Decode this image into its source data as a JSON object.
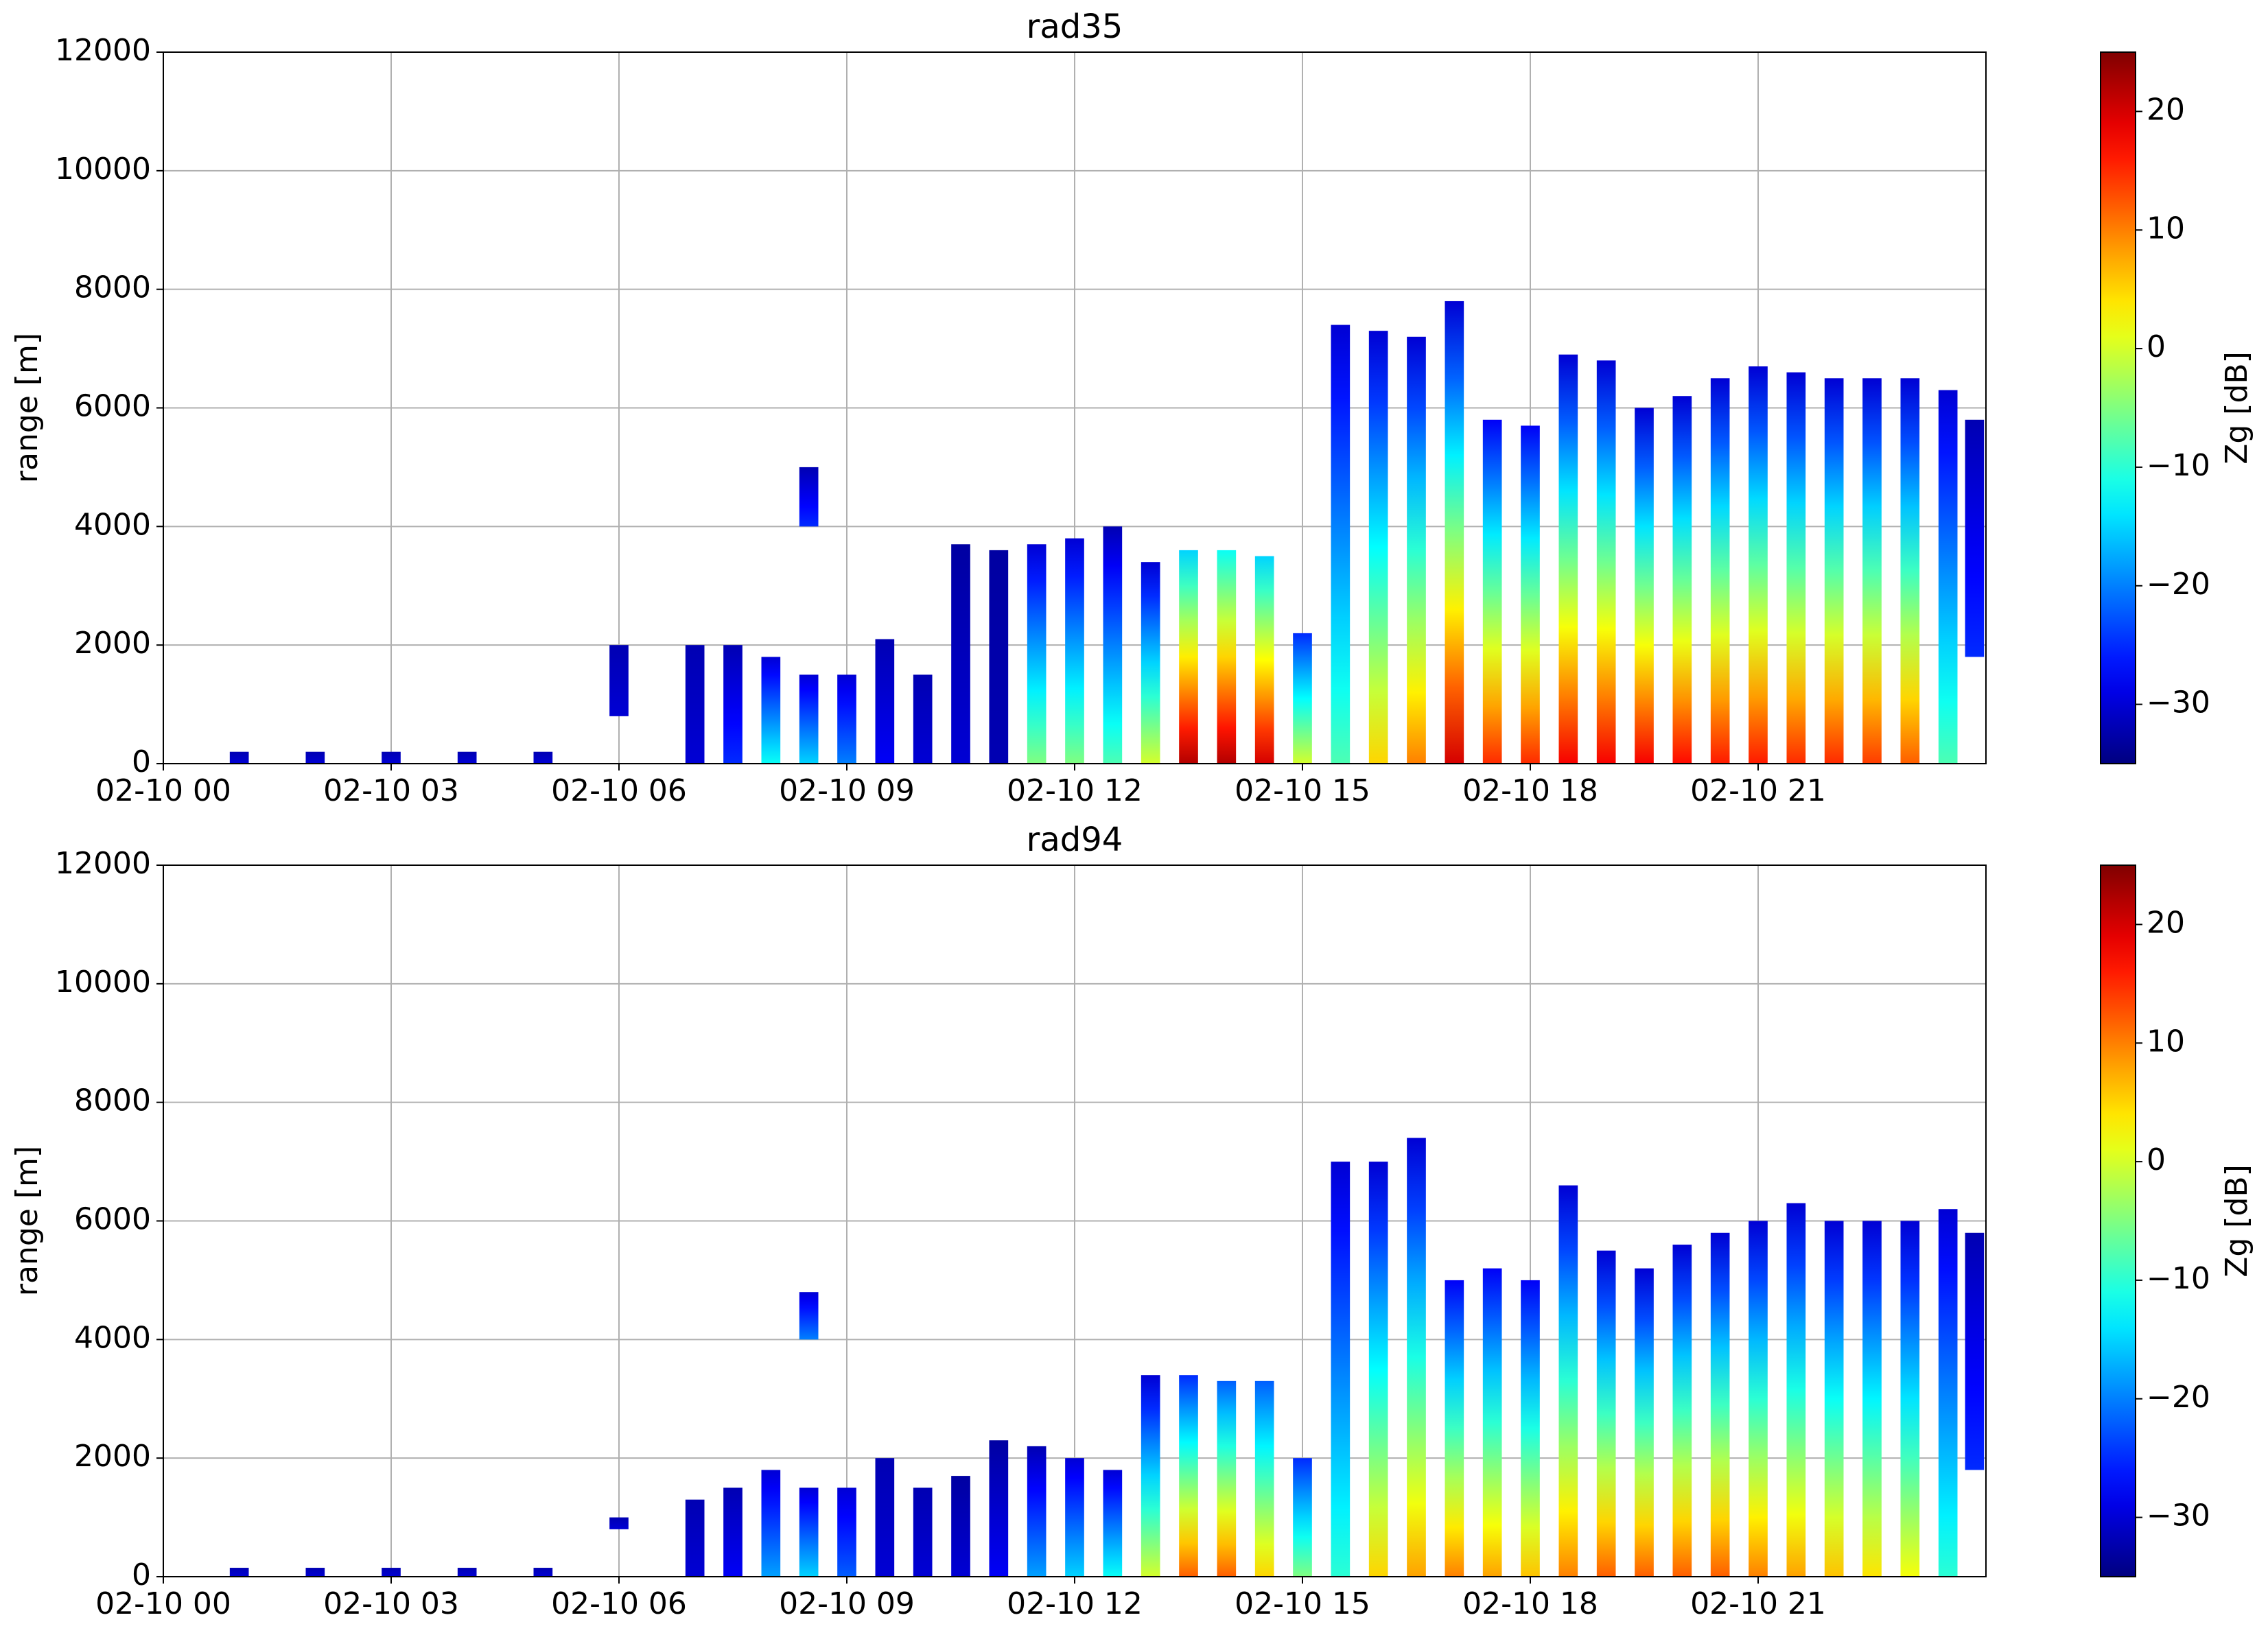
{
  "chart_data": [
    {
      "type": "profiles",
      "title": "rad35",
      "ylabel": "range [m]",
      "colorbar_label": "Zg [dB]",
      "colormap": "jet",
      "grid": true,
      "xlim": [
        0,
        24
      ],
      "xticks": [
        {
          "value": 0,
          "label": "02-10 00"
        },
        {
          "value": 3,
          "label": "02-10 03"
        },
        {
          "value": 6,
          "label": "02-10 06"
        },
        {
          "value": 9,
          "label": "02-10 09"
        },
        {
          "value": 12,
          "label": "02-10 12"
        },
        {
          "value": 15,
          "label": "02-10 15"
        },
        {
          "value": 18,
          "label": "02-10 18"
        },
        {
          "value": 21,
          "label": "02-10 21"
        }
      ],
      "ylim": [
        0,
        12000
      ],
      "yticks": [
        0,
        2000,
        4000,
        6000,
        8000,
        10000,
        12000
      ],
      "zlim": [
        -35,
        25
      ],
      "zticks": [
        {
          "value": -30,
          "label": "−30"
        },
        {
          "value": -20,
          "label": "−20"
        },
        {
          "value": -10,
          "label": "−10"
        },
        0,
        10,
        20
      ],
      "profiles": {
        "x": [
          1,
          2,
          3,
          4,
          5,
          6,
          7,
          7.5,
          8,
          8.5,
          8.5,
          9,
          9.5,
          10,
          10.5,
          11,
          11.5,
          12,
          12.5,
          13,
          13.5,
          14,
          14.5,
          15,
          15.5,
          16,
          16.5,
          17,
          17.5,
          18,
          18.5,
          19,
          19.5,
          20,
          20.5,
          21,
          21.5,
          22,
          22.5,
          23,
          23.5,
          23.85
        ],
        "bottom": [
          0,
          0,
          0,
          0,
          0,
          800,
          0,
          0,
          0,
          4000,
          0,
          0,
          0,
          0,
          0,
          0,
          0,
          0,
          0,
          0,
          0,
          0,
          0,
          0,
          0,
          0,
          0,
          0,
          0,
          0,
          0,
          0,
          0,
          0,
          0,
          0,
          0,
          0,
          0,
          0,
          0,
          1800
        ],
        "top": [
          200,
          200,
          200,
          200,
          200,
          2000,
          2000,
          2000,
          1800,
          5000,
          1500,
          1500,
          2100,
          1500,
          3700,
          3600,
          3700,
          3800,
          4000,
          3400,
          3600,
          3600,
          3500,
          2200,
          7400,
          7300,
          7200,
          7800,
          5800,
          5700,
          6900,
          6800,
          6000,
          6200,
          6500,
          6700,
          6600,
          6500,
          6500,
          6500,
          6300,
          5800
        ],
        "z_bottom": [
          -30,
          -30,
          -30,
          -30,
          -30,
          -30,
          -30,
          -25,
          -12,
          -25,
          -15,
          -20,
          -28,
          -30,
          -30,
          -32,
          -5,
          -5,
          -8,
          0,
          22,
          22,
          20,
          0,
          -8,
          5,
          10,
          20,
          15,
          15,
          18,
          18,
          18,
          17,
          16,
          16,
          15,
          15,
          14,
          12,
          -8,
          -25
        ],
        "z_top": [
          -32,
          -32,
          -32,
          -32,
          -32,
          -32,
          -32,
          -32,
          -30,
          -32,
          -30,
          -30,
          -32,
          -32,
          -33,
          -33,
          -30,
          -30,
          -32,
          -30,
          -15,
          -12,
          -15,
          -25,
          -30,
          -30,
          -30,
          -30,
          -28,
          -28,
          -30,
          -30,
          -30,
          -30,
          -30,
          -30,
          -30,
          -30,
          -30,
          -30,
          -30,
          -32
        ]
      }
    },
    {
      "type": "profiles",
      "title": "rad94",
      "ylabel": "range [m]",
      "colorbar_label": "Zg [dB]",
      "colormap": "jet",
      "grid": true,
      "xlim": [
        0,
        24
      ],
      "xticks": [
        {
          "value": 0,
          "label": "02-10 00"
        },
        {
          "value": 3,
          "label": "02-10 03"
        },
        {
          "value": 6,
          "label": "02-10 06"
        },
        {
          "value": 9,
          "label": "02-10 09"
        },
        {
          "value": 12,
          "label": "02-10 12"
        },
        {
          "value": 15,
          "label": "02-10 15"
        },
        {
          "value": 18,
          "label": "02-10 18"
        },
        {
          "value": 21,
          "label": "02-10 21"
        }
      ],
      "ylim": [
        0,
        12000
      ],
      "yticks": [
        0,
        2000,
        4000,
        6000,
        8000,
        10000,
        12000
      ],
      "zlim": [
        -35,
        25
      ],
      "zticks": [
        {
          "value": -30,
          "label": "−30"
        },
        {
          "value": -20,
          "label": "−20"
        },
        {
          "value": -10,
          "label": "−10"
        },
        0,
        10,
        20
      ],
      "profiles": {
        "x": [
          1,
          2,
          3,
          4,
          5,
          6,
          7,
          7.5,
          8,
          8.5,
          8.5,
          9,
          9.5,
          10,
          10.5,
          11,
          11.5,
          12,
          12.5,
          13,
          13.5,
          14,
          14.5,
          15,
          15.5,
          16,
          16.5,
          17,
          17.5,
          18,
          18.5,
          19,
          19.5,
          20,
          20.5,
          21,
          21.5,
          22,
          22.5,
          23,
          23.5,
          23.85
        ],
        "bottom": [
          0,
          0,
          0,
          0,
          0,
          800,
          0,
          0,
          0,
          4000,
          0,
          0,
          0,
          0,
          0,
          0,
          0,
          0,
          0,
          0,
          0,
          0,
          0,
          0,
          0,
          0,
          0,
          0,
          0,
          0,
          0,
          0,
          0,
          0,
          0,
          0,
          0,
          0,
          0,
          0,
          0,
          1800
        ],
        "top": [
          150,
          150,
          150,
          150,
          150,
          1000,
          1300,
          1500,
          1800,
          4800,
          1500,
          1500,
          2000,
          1500,
          1700,
          2300,
          2200,
          2000,
          1800,
          3400,
          3400,
          3300,
          3300,
          2000,
          7000,
          7000,
          7400,
          5000,
          5200,
          5000,
          6600,
          5500,
          5200,
          5600,
          5800,
          6000,
          6300,
          6000,
          6000,
          6000,
          6200,
          5800
        ],
        "z_bottom": [
          -30,
          -30,
          -30,
          -30,
          -30,
          -30,
          -30,
          -28,
          -18,
          -20,
          -15,
          -22,
          -30,
          -30,
          -30,
          -28,
          -18,
          -15,
          -12,
          0,
          12,
          12,
          5,
          -5,
          -10,
          5,
          8,
          10,
          8,
          6,
          10,
          12,
          12,
          12,
          12,
          10,
          8,
          6,
          4,
          2,
          -10,
          -25
        ],
        "z_top": [
          -32,
          -32,
          -32,
          -32,
          -32,
          -32,
          -32,
          -32,
          -30,
          -30,
          -30,
          -30,
          -32,
          -32,
          -33,
          -33,
          -32,
          -30,
          -30,
          -30,
          -25,
          -22,
          -22,
          -25,
          -30,
          -30,
          -30,
          -28,
          -28,
          -28,
          -30,
          -30,
          -30,
          -30,
          -30,
          -30,
          -30,
          -30,
          -30,
          -30,
          -30,
          -32
        ]
      }
    }
  ]
}
